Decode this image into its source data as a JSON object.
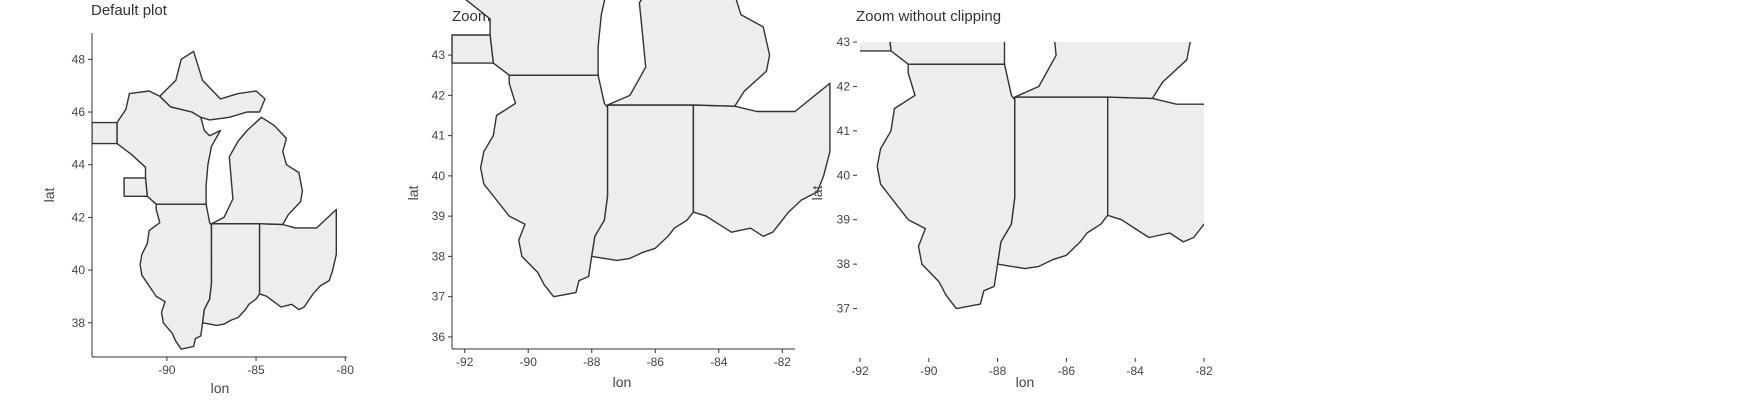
{
  "chart_data": [
    {
      "type": "map",
      "title": "Default plot",
      "xlabel": "lon",
      "ylabel": "lat",
      "xlim": [
        -94.2,
        -79.9
      ],
      "ylim": [
        36.7,
        49.0
      ],
      "xticks": [
        -90,
        -85,
        -80
      ],
      "yticks": [
        38,
        40,
        42,
        44,
        46,
        48
      ],
      "clip": true
    },
    {
      "type": "map",
      "title": "Zoom with clipping",
      "xlabel": "lon",
      "ylabel": "lat",
      "xlim": [
        -92.4,
        -81.6
      ],
      "ylim": [
        35.7,
        43.35
      ],
      "xticks": [
        -92,
        -90,
        -88,
        -86,
        -84,
        -82
      ],
      "yticks": [
        36,
        37,
        38,
        39,
        40,
        41,
        42,
        43
      ],
      "clip": false
    },
    {
      "type": "map",
      "title": "Zoom without clipping",
      "xlabel": "lon",
      "ylabel": "lat",
      "xlim": [
        -92,
        -82
      ],
      "ylim": [
        36.0,
        43.0
      ],
      "xticks": [
        -92,
        -90,
        -88,
        -86,
        -84,
        -82
      ],
      "yticks": [
        37,
        38,
        39,
        40,
        41,
        42,
        43
      ],
      "clip": true
    }
  ],
  "regions": [
    {
      "name": "il",
      "points": [
        [
          -91.5,
          40.2
        ],
        [
          -91.4,
          40.6
        ],
        [
          -91.1,
          41.0
        ],
        [
          -91.0,
          41.5
        ],
        [
          -90.4,
          41.8
        ],
        [
          -90.6,
          42.3
        ],
        [
          -90.6,
          42.5
        ],
        [
          -87.8,
          42.5
        ],
        [
          -87.6,
          41.8
        ],
        [
          -87.5,
          41.7
        ],
        [
          -87.5,
          39.5
        ],
        [
          -87.6,
          38.9
        ],
        [
          -87.9,
          38.5
        ],
        [
          -88.0,
          38.0
        ],
        [
          -88.1,
          37.5
        ],
        [
          -88.4,
          37.4
        ],
        [
          -88.5,
          37.1
        ],
        [
          -89.2,
          37.0
        ],
        [
          -89.5,
          37.3
        ],
        [
          -89.7,
          37.6
        ],
        [
          -90.2,
          38.0
        ],
        [
          -90.3,
          38.4
        ],
        [
          -90.1,
          38.8
        ],
        [
          -90.6,
          39.0
        ],
        [
          -91.0,
          39.4
        ],
        [
          -91.4,
          39.8
        ]
      ]
    },
    {
      "name": "in",
      "points": [
        [
          -87.5,
          41.76
        ],
        [
          -84.8,
          41.76
        ],
        [
          -84.8,
          39.1
        ],
        [
          -85.0,
          38.9
        ],
        [
          -85.4,
          38.7
        ],
        [
          -85.6,
          38.5
        ],
        [
          -86.0,
          38.2
        ],
        [
          -86.4,
          38.1
        ],
        [
          -86.8,
          37.95
        ],
        [
          -87.2,
          37.9
        ],
        [
          -87.6,
          37.95
        ],
        [
          -88.0,
          38.0
        ],
        [
          -87.9,
          38.5
        ],
        [
          -87.6,
          38.9
        ],
        [
          -87.5,
          39.5
        ]
      ]
    },
    {
      "name": "oh",
      "points": [
        [
          -84.8,
          41.76
        ],
        [
          -83.5,
          41.73
        ],
        [
          -82.8,
          41.6
        ],
        [
          -81.6,
          41.6
        ],
        [
          -80.5,
          42.3
        ],
        [
          -80.5,
          40.6
        ],
        [
          -80.7,
          40.0
        ],
        [
          -80.9,
          39.6
        ],
        [
          -81.4,
          39.4
        ],
        [
          -81.8,
          39.1
        ],
        [
          -82.3,
          38.6
        ],
        [
          -82.6,
          38.5
        ],
        [
          -83.0,
          38.7
        ],
        [
          -83.6,
          38.6
        ],
        [
          -84.0,
          38.8
        ],
        [
          -84.4,
          39.0
        ],
        [
          -84.8,
          39.1
        ]
      ]
    },
    {
      "name": "wi",
      "points": [
        [
          -90.6,
          42.5
        ],
        [
          -87.8,
          42.5
        ],
        [
          -87.8,
          43.2
        ],
        [
          -87.7,
          44.0
        ],
        [
          -87.5,
          44.7
        ],
        [
          -87.0,
          45.3
        ],
        [
          -87.6,
          45.1
        ],
        [
          -87.9,
          45.3
        ],
        [
          -88.1,
          45.8
        ],
        [
          -88.6,
          46.0
        ],
        [
          -89.8,
          46.2
        ],
        [
          -90.4,
          46.6
        ],
        [
          -91.0,
          46.8
        ],
        [
          -92.1,
          46.7
        ],
        [
          -92.3,
          46.1
        ],
        [
          -92.8,
          45.6
        ],
        [
          -92.8,
          44.8
        ],
        [
          -92.0,
          44.4
        ],
        [
          -91.2,
          43.9
        ],
        [
          -91.2,
          43.5
        ],
        [
          -91.1,
          42.8
        ]
      ]
    },
    {
      "name": "mi-upper",
      "points": [
        [
          -90.4,
          46.6
        ],
        [
          -89.8,
          46.2
        ],
        [
          -88.6,
          46.0
        ],
        [
          -88.1,
          45.8
        ],
        [
          -87.6,
          45.7
        ],
        [
          -86.5,
          45.8
        ],
        [
          -85.5,
          46.0
        ],
        [
          -84.8,
          46.0
        ],
        [
          -84.5,
          46.5
        ],
        [
          -85.0,
          46.8
        ],
        [
          -86.0,
          46.7
        ],
        [
          -87.0,
          46.5
        ],
        [
          -88.0,
          47.2
        ],
        [
          -88.5,
          48.3
        ],
        [
          -89.2,
          48.0
        ],
        [
          -89.5,
          47.2
        ]
      ]
    },
    {
      "name": "mi-lower",
      "points": [
        [
          -87.5,
          41.76
        ],
        [
          -84.8,
          41.76
        ],
        [
          -83.5,
          41.73
        ],
        [
          -83.2,
          42.1
        ],
        [
          -82.5,
          42.6
        ],
        [
          -82.4,
          43.0
        ],
        [
          -82.6,
          43.7
        ],
        [
          -83.3,
          44.0
        ],
        [
          -83.5,
          44.5
        ],
        [
          -83.3,
          45.0
        ],
        [
          -84.0,
          45.5
        ],
        [
          -84.7,
          45.8
        ],
        [
          -85.5,
          45.3
        ],
        [
          -86.0,
          44.9
        ],
        [
          -86.5,
          44.3
        ],
        [
          -86.4,
          43.5
        ],
        [
          -86.3,
          42.7
        ],
        [
          -86.8,
          42.0
        ]
      ]
    },
    {
      "name": "mn-stub",
      "points": [
        [
          -92.8,
          45.6
        ],
        [
          -92.8,
          44.8
        ],
        [
          -94.2,
          44.8
        ],
        [
          -94.2,
          45.6
        ]
      ]
    },
    {
      "name": "ia-stub",
      "points": [
        [
          -91.1,
          42.8
        ],
        [
          -91.2,
          43.5
        ],
        [
          -92.4,
          43.5
        ],
        [
          -92.4,
          42.8
        ]
      ]
    }
  ]
}
